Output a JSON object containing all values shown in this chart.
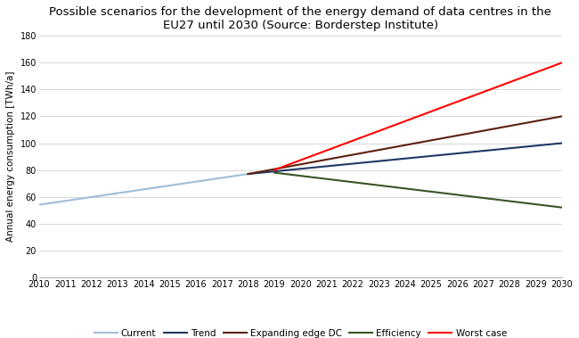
{
  "title": "Possible scenarios for the development of the energy demand of data centres in the\nEU27 until 2030 (Source: Borderstep Institute)",
  "ylabel": "Annual energy consumption [TWh/a]",
  "xlabel": "",
  "xlim": [
    2010,
    2030
  ],
  "ylim": [
    0,
    180
  ],
  "yticks": [
    0,
    20,
    40,
    60,
    80,
    100,
    120,
    140,
    160,
    180
  ],
  "xticks": [
    2010,
    2011,
    2012,
    2013,
    2014,
    2015,
    2016,
    2017,
    2018,
    2019,
    2020,
    2021,
    2022,
    2023,
    2024,
    2025,
    2026,
    2027,
    2028,
    2029,
    2030
  ],
  "series": [
    {
      "label": "Current",
      "color": "#a0bdd8",
      "linewidth": 1.5,
      "x": [
        2010,
        2018
      ],
      "y": [
        54,
        77
      ]
    },
    {
      "label": "Trend",
      "color": "#1f3864",
      "linewidth": 1.5,
      "x": [
        2018,
        2030
      ],
      "y": [
        77,
        100
      ]
    },
    {
      "label": "Expanding edge DC",
      "color": "#5c2010",
      "linewidth": 1.5,
      "x": [
        2018,
        2030
      ],
      "y": [
        77,
        120
      ]
    },
    {
      "label": "Efficiency",
      "color": "#375623",
      "linewidth": 1.5,
      "x": [
        2019,
        2030
      ],
      "y": [
        78,
        52
      ]
    },
    {
      "label": "Worst case",
      "color": "#ff0000",
      "linewidth": 1.5,
      "x": [
        2019,
        2030
      ],
      "y": [
        80,
        160
      ]
    }
  ],
  "legend_order": [
    "Current",
    "Trend",
    "Expanding edge DC",
    "Efficiency",
    "Worst case"
  ],
  "background_color": "#ffffff",
  "title_fontsize": 9.5,
  "ylabel_fontsize": 7.5,
  "tick_fontsize": 7,
  "legend_fontsize": 7.5
}
